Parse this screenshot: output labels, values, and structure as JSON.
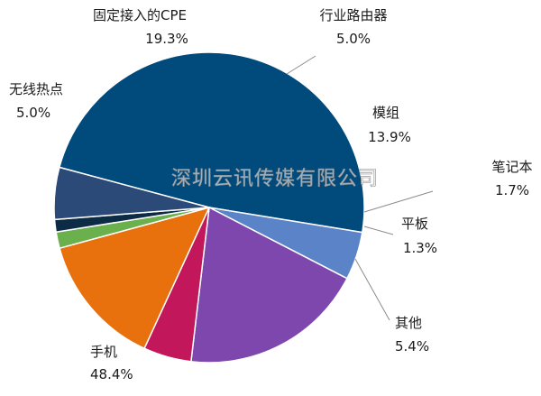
{
  "chart_data": {
    "type": "pie",
    "title": "",
    "slices": [
      {
        "label": "手机",
        "value": 48.4,
        "value_text": "48.4%",
        "color": "#004a7c"
      },
      {
        "label": "无线热点",
        "value": 5.0,
        "value_text": "5.0%",
        "color": "#5b84c8"
      },
      {
        "label": "固定接入的CPE",
        "value": 19.3,
        "value_text": "19.3%",
        "color": "#7d47ad"
      },
      {
        "label": "行业路由器",
        "value": 5.0,
        "value_text": "5.0%",
        "color": "#c2185b"
      },
      {
        "label": "模组",
        "value": 13.9,
        "value_text": "13.9%",
        "color": "#e8700d"
      },
      {
        "label": "笔记本",
        "value": 1.7,
        "value_text": "1.7%",
        "color": "#6ab04c"
      },
      {
        "label": "平板",
        "value": 1.3,
        "value_text": "1.3%",
        "color": "#0d2b45"
      },
      {
        "label": "其他",
        "value": 5.4,
        "value_text": "5.4%",
        "color": "#2c4a78"
      }
    ],
    "legend": "none",
    "data_labels": "outside"
  },
  "watermark": {
    "text": "深圳云讯传媒有限公司"
  }
}
